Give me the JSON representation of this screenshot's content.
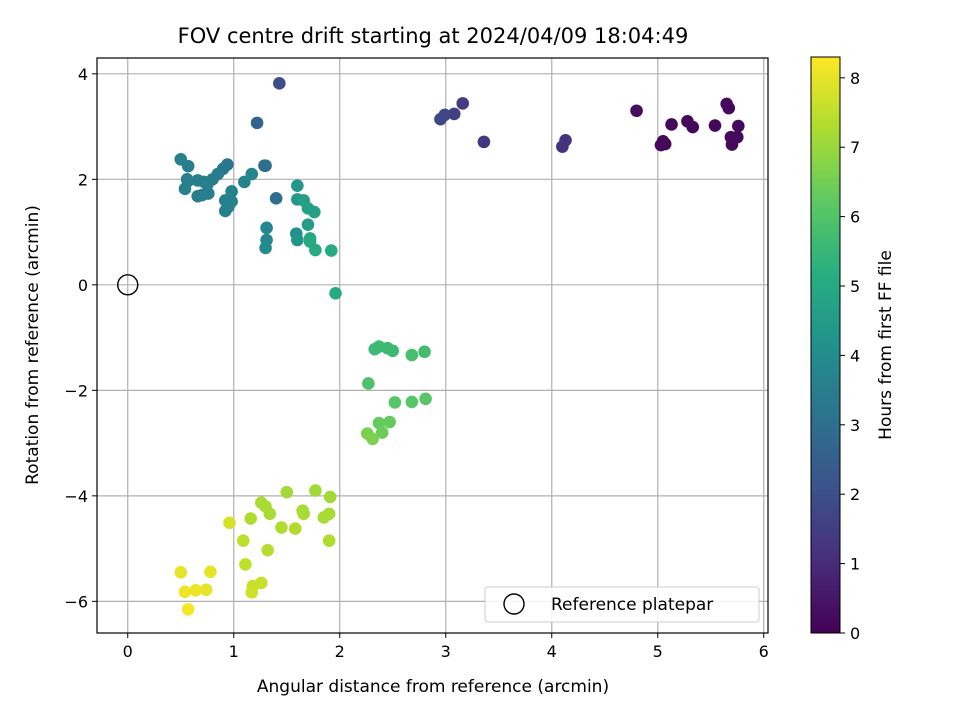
{
  "chart_data": {
    "type": "scatter",
    "title": "FOV centre drift starting at 2024/04/09 18:04:49",
    "xlabel": "Angular distance from reference (arcmin)",
    "ylabel": "Rotation from reference (arcmin)",
    "xlim": [
      -0.29,
      6.04
    ],
    "ylim": [
      -6.6,
      4.3
    ],
    "xticks": [
      0,
      1,
      2,
      3,
      4,
      5,
      6
    ],
    "yticks": [
      -6,
      -4,
      -2,
      0,
      2,
      4
    ],
    "grid": true,
    "legend": {
      "position": "lower-right",
      "entries": [
        "Reference platepar"
      ]
    },
    "colorbar": {
      "label": "Hours from first FF file",
      "range": [
        0,
        8.3
      ],
      "ticks": [
        0,
        1,
        2,
        3,
        4,
        5,
        6,
        7,
        8
      ],
      "colormap": "viridis"
    },
    "reference_point": {
      "name": "Reference platepar",
      "x": 0,
      "y": 0
    },
    "series": [
      {
        "points": [
          [
            5.05,
            2.72,
            0.2
          ],
          [
            5.03,
            2.65,
            0.2
          ],
          [
            5.07,
            2.67,
            0.2
          ],
          [
            5.13,
            3.04,
            0.2
          ],
          [
            5.28,
            3.1,
            0.2
          ],
          [
            5.33,
            2.99,
            0.2
          ],
          [
            5.54,
            3.02,
            0.2
          ],
          [
            5.65,
            3.43,
            0.2
          ],
          [
            5.67,
            3.35,
            0.2
          ],
          [
            5.69,
            2.8,
            0.2
          ],
          [
            5.7,
            2.66,
            0.2
          ],
          [
            5.76,
            3.01,
            0.2
          ],
          [
            5.75,
            2.8,
            0.2
          ],
          [
            4.8,
            3.3,
            0.3
          ],
          [
            4.13,
            2.74,
            1.2
          ],
          [
            4.1,
            2.62,
            1.2
          ],
          [
            3.36,
            2.71,
            1.3
          ],
          [
            3.16,
            3.44,
            1.5
          ],
          [
            3.08,
            3.24,
            1.6
          ],
          [
            2.99,
            3.22,
            1.7
          ],
          [
            2.95,
            3.14,
            1.8
          ],
          [
            1.43,
            3.82,
            2.0
          ],
          [
            1.22,
            3.07,
            2.7
          ],
          [
            1.29,
            2.26,
            2.9
          ],
          [
            1.4,
            1.64,
            3.0
          ],
          [
            1.3,
            2.26,
            3.0
          ],
          [
            0.94,
            2.28,
            3.2
          ],
          [
            0.9,
            2.2,
            3.3
          ],
          [
            0.85,
            2.1,
            3.4
          ],
          [
            0.8,
            2.0,
            3.4
          ],
          [
            0.75,
            1.9,
            3.5
          ],
          [
            0.72,
            1.95,
            3.5
          ],
          [
            0.66,
            1.98,
            3.5
          ],
          [
            0.7,
            1.7,
            3.5
          ],
          [
            0.66,
            1.68,
            3.5
          ],
          [
            0.57,
            2.25,
            3.5
          ],
          [
            0.5,
            2.38,
            3.6
          ],
          [
            0.56,
            2.0,
            3.5
          ],
          [
            0.54,
            1.82,
            3.6
          ],
          [
            0.57,
            1.97,
            3.5
          ],
          [
            0.76,
            1.73,
            3.5
          ],
          [
            0.98,
            1.77,
            3.6
          ],
          [
            1.1,
            1.95,
            3.6
          ],
          [
            1.17,
            2.1,
            3.7
          ],
          [
            0.92,
            1.6,
            3.6
          ],
          [
            0.95,
            1.48,
            3.6
          ],
          [
            0.98,
            1.58,
            3.6
          ],
          [
            0.92,
            1.4,
            3.6
          ],
          [
            1.31,
            1.08,
            3.8
          ],
          [
            1.31,
            0.85,
            3.8
          ],
          [
            1.3,
            0.7,
            3.9
          ],
          [
            1.6,
            1.88,
            4.4
          ],
          [
            1.6,
            1.62,
            4.4
          ],
          [
            1.66,
            1.6,
            4.6
          ],
          [
            1.59,
            0.97,
            4.2
          ],
          [
            1.6,
            0.85,
            4.3
          ],
          [
            1.7,
            1.14,
            4.6
          ],
          [
            1.7,
            1.45,
            4.7
          ],
          [
            1.76,
            1.38,
            4.7
          ],
          [
            1.72,
            0.88,
            4.9
          ],
          [
            1.72,
            0.82,
            5.0
          ],
          [
            1.77,
            0.66,
            5.0
          ],
          [
            1.92,
            0.65,
            5.1
          ],
          [
            1.96,
            -0.16,
            5.0
          ],
          [
            2.33,
            -1.22,
            5.6
          ],
          [
            2.37,
            -1.17,
            5.6
          ],
          [
            2.45,
            -1.2,
            5.6
          ],
          [
            2.5,
            -1.25,
            5.6
          ],
          [
            2.8,
            -1.27,
            5.7
          ],
          [
            2.68,
            -1.33,
            5.8
          ],
          [
            2.27,
            -1.87,
            5.9
          ],
          [
            2.52,
            -2.23,
            6.1
          ],
          [
            2.68,
            -2.22,
            6.1
          ],
          [
            2.81,
            -2.16,
            6.1
          ],
          [
            2.37,
            -2.62,
            6.3
          ],
          [
            2.47,
            -2.6,
            6.3
          ],
          [
            2.4,
            -2.8,
            6.4
          ],
          [
            2.26,
            -2.82,
            6.6
          ],
          [
            2.31,
            -2.92,
            6.6
          ],
          [
            1.5,
            -3.93,
            7.1
          ],
          [
            1.77,
            -3.9,
            7.1
          ],
          [
            1.91,
            -4.02,
            7.1
          ],
          [
            1.26,
            -4.13,
            7.2
          ],
          [
            1.3,
            -4.2,
            7.2
          ],
          [
            1.34,
            -4.34,
            7.2
          ],
          [
            1.65,
            -4.28,
            7.2
          ],
          [
            1.66,
            -4.34,
            7.2
          ],
          [
            1.85,
            -4.41,
            7.2
          ],
          [
            1.9,
            -4.34,
            7.2
          ],
          [
            1.16,
            -4.43,
            7.3
          ],
          [
            1.45,
            -4.6,
            7.3
          ],
          [
            1.58,
            -4.62,
            7.3
          ],
          [
            1.9,
            -4.85,
            7.3
          ],
          [
            1.32,
            -5.03,
            7.4
          ],
          [
            1.09,
            -4.85,
            7.5
          ],
          [
            1.11,
            -5.3,
            7.5
          ],
          [
            1.18,
            -5.71,
            7.6
          ],
          [
            1.26,
            -5.65,
            7.6
          ],
          [
            1.17,
            -5.83,
            7.7
          ],
          [
            0.96,
            -4.51,
            7.8
          ],
          [
            0.78,
            -5.44,
            8.0
          ],
          [
            0.5,
            -5.45,
            8.0
          ],
          [
            0.74,
            -5.78,
            8.0
          ],
          [
            0.64,
            -5.79,
            8.1
          ],
          [
            0.54,
            -5.82,
            8.1
          ],
          [
            0.57,
            -6.15,
            8.2
          ]
        ]
      }
    ]
  }
}
